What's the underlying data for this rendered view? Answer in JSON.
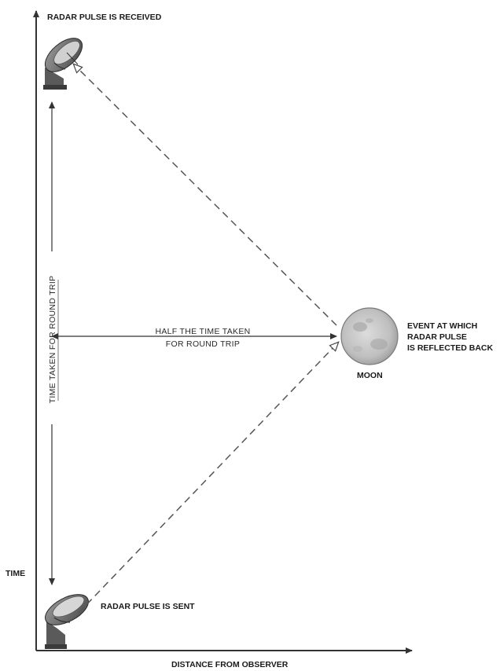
{
  "labels": {
    "received": "RADAR PULSE IS RECEIVED",
    "sent": "RADAR PULSE IS SENT",
    "time_axis": "TIME",
    "distance_axis": "DISTANCE FROM OBSERVER",
    "round_trip": "TIME TAKEN FOR ROUND TRIP",
    "half_time_line1": "HALF THE TIME TAKEN",
    "half_time_line2": "FOR ROUND TRIP",
    "event_line1": "EVENT AT WHICH",
    "event_line2": "RADAR PULSE",
    "event_line3": "IS REFLECTED BACK",
    "moon": "MOON"
  },
  "icons": {
    "top_dish": "radar-dish-icon",
    "bottom_dish": "radar-dish-icon",
    "moon": "moon-icon"
  },
  "colors": {
    "line": "#333333",
    "dash": "#555555",
    "moon_fill": "#c9c9c9",
    "dish_fill": "#7a7a7a"
  }
}
